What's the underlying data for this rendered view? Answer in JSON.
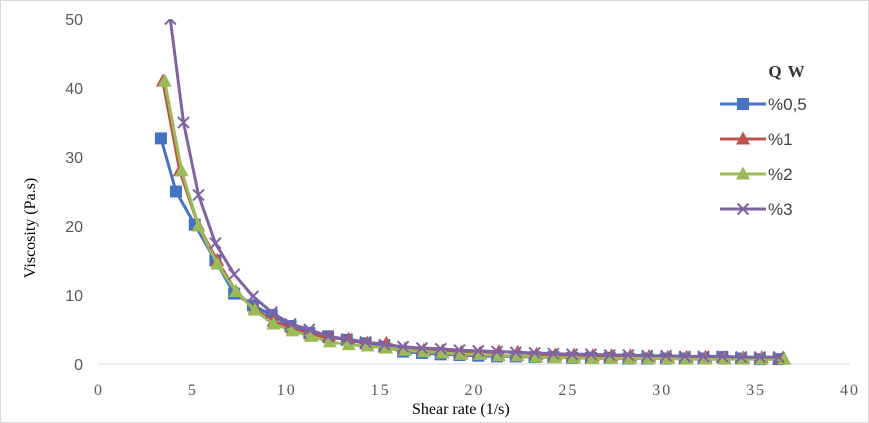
{
  "chart_data": {
    "type": "line",
    "title": "",
    "xlabel": "Shear rate (1/s)",
    "ylabel": "Viscosity (Pa.s)",
    "xlim": [
      0,
      40
    ],
    "ylim": [
      0,
      50
    ],
    "xticks": [
      "0",
      "5",
      "10",
      "15",
      "20",
      "25",
      "30",
      "35",
      "40"
    ],
    "yticks": [
      "0",
      "10",
      "20",
      "30",
      "40",
      "50"
    ],
    "grid": false,
    "legend_title": "Q W",
    "legend_placement": "right",
    "series": [
      {
        "name": "%0,5",
        "color": "#4472C4",
        "marker": "square",
        "x": [
          3.3,
          4.1,
          5.1,
          6.2,
          7.2,
          8.2,
          9.2,
          10.2,
          11.2,
          12.2,
          13.2,
          14.2,
          15.2,
          16.2,
          17.2,
          18.2,
          19.2,
          20.2,
          21.2,
          22.2,
          23.2,
          24.2,
          25.2,
          26.2,
          27.2,
          28.2,
          29.2,
          30.2,
          31.2,
          32.2,
          33.2,
          34.2,
          35.2,
          36.2
        ],
        "values": [
          32.7,
          25.0,
          20.2,
          15.0,
          10.2,
          8.5,
          7.1,
          5.5,
          4.5,
          4.0,
          3.5,
          3.0,
          2.5,
          1.8,
          1.6,
          1.4,
          1.3,
          1.2,
          1.1,
          1.1,
          1.0,
          1.0,
          0.9,
          0.9,
          0.9,
          0.8,
          0.8,
          0.8,
          0.8,
          0.8,
          1.0,
          0.8,
          0.7,
          0.7
        ]
      },
      {
        "name": "%1",
        "color": "#C0504D",
        "marker": "triangle",
        "x": [
          3.4,
          4.3,
          5.3,
          6.3,
          7.3,
          8.3,
          9.3,
          10.3,
          11.3,
          12.3,
          13.3,
          14.3,
          15.3,
          16.3,
          17.3,
          18.3,
          19.3,
          20.3,
          21.3,
          22.3,
          23.3,
          24.3,
          25.3,
          26.3,
          27.3,
          28.3,
          29.3,
          30.3,
          31.3,
          32.3,
          33.3,
          34.3,
          35.3,
          36.4
        ],
        "values": [
          41.0,
          28.0,
          20.0,
          15.0,
          10.5,
          8.0,
          6.2,
          5.2,
          4.2,
          3.8,
          3.6,
          3.0,
          3.0,
          2.2,
          2.0,
          1.9,
          1.7,
          1.6,
          1.8,
          1.7,
          1.4,
          1.3,
          1.3,
          1.2,
          1.2,
          1.2,
          1.1,
          1.0,
          1.0,
          1.0,
          0.9,
          0.9,
          0.9,
          0.7
        ]
      },
      {
        "name": "%2",
        "color": "#9BBB59",
        "marker": "triangle",
        "x": [
          3.5,
          4.4,
          5.3,
          6.3,
          7.3,
          8.3,
          9.3,
          10.3,
          11.3,
          12.3,
          13.3,
          14.3,
          15.3,
          16.3,
          17.3,
          18.3,
          19.3,
          20.3,
          21.3,
          22.3,
          23.3,
          24.3,
          25.3,
          26.3,
          27.3,
          28.3,
          29.3,
          30.3,
          31.3,
          32.3,
          33.3,
          34.3,
          35.3,
          36.5
        ],
        "values": [
          41.0,
          28.0,
          20.0,
          14.5,
          10.5,
          7.8,
          5.8,
          4.8,
          4.0,
          3.2,
          2.8,
          2.6,
          2.3,
          2.0,
          1.8,
          1.6,
          1.4,
          1.4,
          1.2,
          1.2,
          1.0,
          0.9,
          0.9,
          0.8,
          0.8,
          0.8,
          0.8,
          0.8,
          0.7,
          0.7,
          0.7,
          0.7,
          0.7,
          0.7
        ]
      },
      {
        "name": "%3",
        "color": "#8064A2",
        "marker": "x",
        "x": [
          3.8,
          4.5,
          5.3,
          6.2,
          7.2,
          8.2,
          9.2,
          10.2,
          11.2,
          12.2,
          13.2,
          14.2,
          15.2,
          16.2,
          17.2,
          18.2,
          19.2,
          20.2,
          21.2,
          22.2,
          23.2,
          24.2,
          25.2,
          26.2,
          27.2,
          28.2,
          29.2,
          30.2,
          31.2,
          32.2,
          33.2,
          34.2,
          35.2,
          36.2
        ],
        "values": [
          50.0,
          35.0,
          24.5,
          17.5,
          13.0,
          9.8,
          7.5,
          5.8,
          5.0,
          4.0,
          3.6,
          3.2,
          2.8,
          2.5,
          2.3,
          2.2,
          2.0,
          1.9,
          1.8,
          1.7,
          1.6,
          1.5,
          1.4,
          1.4,
          1.3,
          1.3,
          1.2,
          1.2,
          1.1,
          1.1,
          1.1,
          1.0,
          1.0,
          1.0
        ]
      }
    ]
  }
}
